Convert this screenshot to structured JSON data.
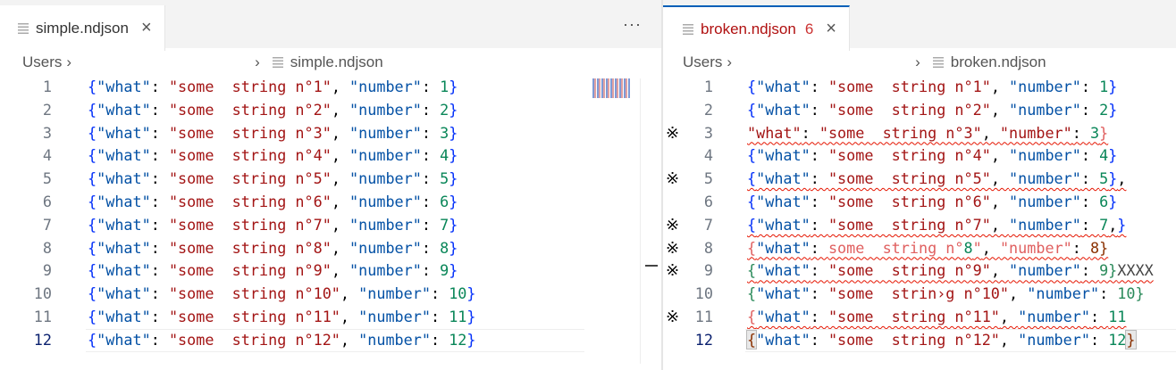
{
  "colors": {
    "accent": "#005fb8",
    "error": "#e51400"
  },
  "left": {
    "tab": {
      "label": "simple.ndjson",
      "icon": "file-lines-icon",
      "close_icon": "close-icon"
    },
    "more_label": "···",
    "breadcrumb": {
      "root": "Users",
      "file": "simple.ndjson"
    },
    "current_line": 12,
    "lines": [
      {
        "n": "1",
        "tokens": [
          [
            "{",
            "b"
          ],
          [
            "\"what\"",
            "k"
          ],
          [
            ": ",
            "p"
          ],
          [
            "\"some  string n°1\"",
            "s"
          ],
          [
            ", ",
            "p"
          ],
          [
            "\"number\"",
            "k"
          ],
          [
            ": ",
            "p"
          ],
          [
            "1",
            "n"
          ],
          [
            "}",
            "b"
          ]
        ]
      },
      {
        "n": "2",
        "tokens": [
          [
            "{",
            "b"
          ],
          [
            "\"what\"",
            "k"
          ],
          [
            ": ",
            "p"
          ],
          [
            "\"some  string n°2\"",
            "s"
          ],
          [
            ", ",
            "p"
          ],
          [
            "\"number\"",
            "k"
          ],
          [
            ": ",
            "p"
          ],
          [
            "2",
            "n"
          ],
          [
            "}",
            "b"
          ]
        ]
      },
      {
        "n": "3",
        "tokens": [
          [
            "{",
            "b"
          ],
          [
            "\"what\"",
            "k"
          ],
          [
            ": ",
            "p"
          ],
          [
            "\"some  string n°3\"",
            "s"
          ],
          [
            ", ",
            "p"
          ],
          [
            "\"number\"",
            "k"
          ],
          [
            ": ",
            "p"
          ],
          [
            "3",
            "n"
          ],
          [
            "}",
            "b"
          ]
        ]
      },
      {
        "n": "4",
        "tokens": [
          [
            "{",
            "b"
          ],
          [
            "\"what\"",
            "k"
          ],
          [
            ": ",
            "p"
          ],
          [
            "\"some  string n°4\"",
            "s"
          ],
          [
            ", ",
            "p"
          ],
          [
            "\"number\"",
            "k"
          ],
          [
            ": ",
            "p"
          ],
          [
            "4",
            "n"
          ],
          [
            "}",
            "b"
          ]
        ]
      },
      {
        "n": "5",
        "tokens": [
          [
            "{",
            "b"
          ],
          [
            "\"what\"",
            "k"
          ],
          [
            ": ",
            "p"
          ],
          [
            "\"some  string n°5\"",
            "s"
          ],
          [
            ", ",
            "p"
          ],
          [
            "\"number\"",
            "k"
          ],
          [
            ": ",
            "p"
          ],
          [
            "5",
            "n"
          ],
          [
            "}",
            "b"
          ]
        ]
      },
      {
        "n": "6",
        "tokens": [
          [
            "{",
            "b"
          ],
          [
            "\"what\"",
            "k"
          ],
          [
            ": ",
            "p"
          ],
          [
            "\"some  string n°6\"",
            "s"
          ],
          [
            ", ",
            "p"
          ],
          [
            "\"number\"",
            "k"
          ],
          [
            ": ",
            "p"
          ],
          [
            "6",
            "n"
          ],
          [
            "}",
            "b"
          ]
        ]
      },
      {
        "n": "7",
        "tokens": [
          [
            "{",
            "b"
          ],
          [
            "\"what\"",
            "k"
          ],
          [
            ": ",
            "p"
          ],
          [
            "\"some  string n°7\"",
            "s"
          ],
          [
            ", ",
            "p"
          ],
          [
            "\"number\"",
            "k"
          ],
          [
            ": ",
            "p"
          ],
          [
            "7",
            "n"
          ],
          [
            "}",
            "b"
          ]
        ]
      },
      {
        "n": "8",
        "tokens": [
          [
            "{",
            "b"
          ],
          [
            "\"what\"",
            "k"
          ],
          [
            ": ",
            "p"
          ],
          [
            "\"some  string n°8\"",
            "s"
          ],
          [
            ", ",
            "p"
          ],
          [
            "\"number\"",
            "k"
          ],
          [
            ": ",
            "p"
          ],
          [
            "8",
            "n"
          ],
          [
            "}",
            "b"
          ]
        ]
      },
      {
        "n": "9",
        "tokens": [
          [
            "{",
            "b"
          ],
          [
            "\"what\"",
            "k"
          ],
          [
            ": ",
            "p"
          ],
          [
            "\"some  string n°9\"",
            "s"
          ],
          [
            ", ",
            "p"
          ],
          [
            "\"number\"",
            "k"
          ],
          [
            ": ",
            "p"
          ],
          [
            "9",
            "n"
          ],
          [
            "}",
            "b"
          ]
        ]
      },
      {
        "n": "10",
        "tokens": [
          [
            "{",
            "b"
          ],
          [
            "\"what\"",
            "k"
          ],
          [
            ": ",
            "p"
          ],
          [
            "\"some  string n°10\"",
            "s"
          ],
          [
            ", ",
            "p"
          ],
          [
            "\"number\"",
            "k"
          ],
          [
            ": ",
            "p"
          ],
          [
            "10",
            "n"
          ],
          [
            "}",
            "b"
          ]
        ]
      },
      {
        "n": "11",
        "tokens": [
          [
            "{",
            "b"
          ],
          [
            "\"what\"",
            "k"
          ],
          [
            ": ",
            "p"
          ],
          [
            "\"some  string n°11\"",
            "s"
          ],
          [
            ", ",
            "p"
          ],
          [
            "\"number\"",
            "k"
          ],
          [
            ": ",
            "p"
          ],
          [
            "11",
            "n"
          ],
          [
            "}",
            "b"
          ]
        ]
      },
      {
        "n": "12",
        "tokens": [
          [
            "{",
            "b"
          ],
          [
            "\"what\"",
            "k"
          ],
          [
            ": ",
            "p"
          ],
          [
            "\"some  string n°12\"",
            "s"
          ],
          [
            ", ",
            "p"
          ],
          [
            "\"number\"",
            "k"
          ],
          [
            ": ",
            "p"
          ],
          [
            "12",
            "n"
          ],
          [
            "}",
            "b"
          ]
        ]
      }
    ]
  },
  "right": {
    "tab": {
      "label": "broken.ndjson",
      "problem_count": "6",
      "icon": "file-lines-icon",
      "close_icon": "close-icon"
    },
    "breadcrumb": {
      "root": "Users",
      "file": "broken.ndjson"
    },
    "current_line": 12,
    "error_marker": "※",
    "lines": [
      {
        "n": "1",
        "error": false,
        "tokens": [
          [
            "{",
            "b"
          ],
          [
            "\"what\"",
            "k"
          ],
          [
            ": ",
            "p"
          ],
          [
            "\"some  string n°1\"",
            "s"
          ],
          [
            ", ",
            "p"
          ],
          [
            "\"number\"",
            "k"
          ],
          [
            ": ",
            "p"
          ],
          [
            "1",
            "n"
          ],
          [
            "}",
            "b"
          ]
        ]
      },
      {
        "n": "2",
        "error": false,
        "tokens": [
          [
            "{",
            "b"
          ],
          [
            "\"what\"",
            "k"
          ],
          [
            ": ",
            "p"
          ],
          [
            "\"some  string n°2\"",
            "s"
          ],
          [
            ", ",
            "p"
          ],
          [
            "\"number\"",
            "k"
          ],
          [
            ": ",
            "p"
          ],
          [
            "2",
            "n"
          ],
          [
            "}",
            "b"
          ]
        ]
      },
      {
        "n": "3",
        "error": true,
        "tokens": [
          [
            "\"what\"",
            "s"
          ],
          [
            ": ",
            "p"
          ],
          [
            "\"some  string n°3\"",
            "s"
          ],
          [
            ", ",
            "p"
          ],
          [
            "\"number\"",
            "s"
          ],
          [
            ": ",
            "p"
          ],
          [
            "3",
            "n"
          ],
          [
            "}",
            "r"
          ]
        ]
      },
      {
        "n": "4",
        "error": false,
        "tokens": [
          [
            "{",
            "b"
          ],
          [
            "\"what\"",
            "k"
          ],
          [
            ": ",
            "p"
          ],
          [
            "\"some  string n°4\"",
            "s"
          ],
          [
            ", ",
            "p"
          ],
          [
            "\"number\"",
            "k"
          ],
          [
            ": ",
            "p"
          ],
          [
            "4",
            "n"
          ],
          [
            "}",
            "b"
          ]
        ]
      },
      {
        "n": "5",
        "error": true,
        "tokens": [
          [
            "{",
            "b"
          ],
          [
            "\"what\"",
            "k"
          ],
          [
            ": ",
            "p"
          ],
          [
            "\"some  string n°5\"",
            "s"
          ],
          [
            ", ",
            "p"
          ],
          [
            "\"number\"",
            "k"
          ],
          [
            ": ",
            "p"
          ],
          [
            "5",
            "n"
          ],
          [
            "}",
            "b"
          ],
          [
            ",",
            "p"
          ]
        ]
      },
      {
        "n": "6",
        "error": false,
        "tokens": [
          [
            "{",
            "b"
          ],
          [
            "\"what\"",
            "k"
          ],
          [
            ": ",
            "p"
          ],
          [
            "\"some  string n°6\"",
            "s"
          ],
          [
            ", ",
            "p"
          ],
          [
            "\"number\"",
            "k"
          ],
          [
            ": ",
            "p"
          ],
          [
            "6",
            "n"
          ],
          [
            "}",
            "b"
          ]
        ]
      },
      {
        "n": "7",
        "error": true,
        "tokens": [
          [
            "{",
            "b"
          ],
          [
            "\"what\"",
            "k"
          ],
          [
            ": ",
            "p"
          ],
          [
            "\"some  string n°7\"",
            "s"
          ],
          [
            ", ",
            "p"
          ],
          [
            "\"number\"",
            "k"
          ],
          [
            ": ",
            "p"
          ],
          [
            "7",
            "n"
          ],
          [
            ",",
            "p"
          ],
          [
            "}",
            "b"
          ]
        ]
      },
      {
        "n": "8",
        "error": true,
        "tokens": [
          [
            "{",
            "r"
          ],
          [
            "\"what\"",
            "k"
          ],
          [
            ": ",
            "p"
          ],
          [
            "some  string n°",
            "r"
          ],
          [
            "8",
            "n"
          ],
          [
            "\"",
            "r"
          ],
          [
            ", ",
            "p"
          ],
          [
            "\"number\"",
            "r"
          ],
          [
            ": ",
            "p"
          ],
          [
            "8}",
            "br"
          ]
        ]
      },
      {
        "n": "9",
        "error": true,
        "tokens": [
          [
            "{",
            "g"
          ],
          [
            "\"what\"",
            "k"
          ],
          [
            ": ",
            "p"
          ],
          [
            "\"some  string n°9\"",
            "s"
          ],
          [
            ", ",
            "p"
          ],
          [
            "\"number\"",
            "k"
          ],
          [
            ": ",
            "p"
          ],
          [
            "9}",
            "g"
          ],
          [
            "XXXX",
            "x"
          ]
        ]
      },
      {
        "n": "10",
        "error": false,
        "tokens": [
          [
            "{",
            "g"
          ],
          [
            "\"what\"",
            "k"
          ],
          [
            ": ",
            "p"
          ],
          [
            "\"some  strin›g n°10\"",
            "s"
          ],
          [
            ", ",
            "p"
          ],
          [
            "\"number\"",
            "k"
          ],
          [
            ": ",
            "p"
          ],
          [
            "10}",
            "g"
          ]
        ]
      },
      {
        "n": "11",
        "error": true,
        "tokens": [
          [
            "{",
            "r"
          ],
          [
            "\"what\"",
            "k"
          ],
          [
            ": ",
            "p"
          ],
          [
            "\"some  string n°11\"",
            "s"
          ],
          [
            ", ",
            "p"
          ],
          [
            "\"number\"",
            "k"
          ],
          [
            ": ",
            "p"
          ],
          [
            "11",
            "n"
          ]
        ]
      },
      {
        "n": "12",
        "error": false,
        "tokens": [
          [
            "{",
            "br"
          ],
          [
            "\"what\"",
            "k"
          ],
          [
            ": ",
            "p"
          ],
          [
            "\"some  string n°12\"",
            "s"
          ],
          [
            ", ",
            "p"
          ],
          [
            "\"number\"",
            "k"
          ],
          [
            ": ",
            "p"
          ],
          [
            "12",
            "n"
          ],
          [
            "}",
            "br"
          ]
        ]
      }
    ]
  }
}
